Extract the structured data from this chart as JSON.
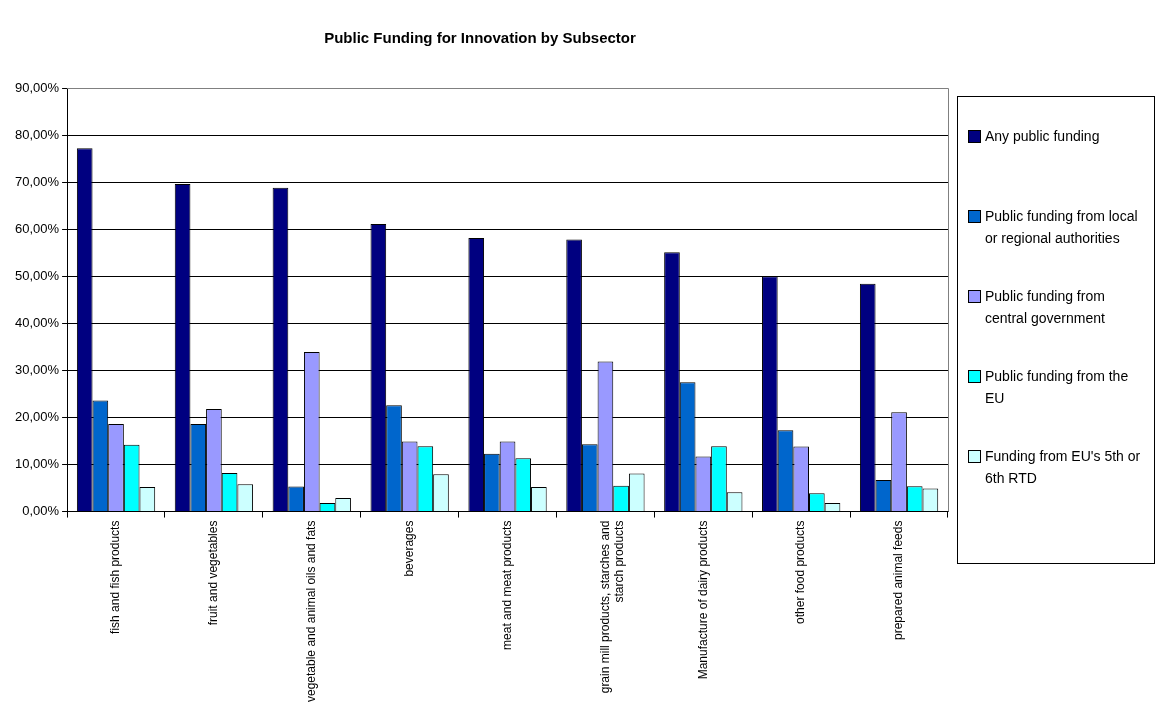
{
  "chart_data": {
    "type": "bar",
    "title": "Public Funding for Innovation by Subsector",
    "categories": [
      "fish and fish products",
      "fruit and vegetables",
      "vegetable and animal oils and fats",
      "beverages",
      "meat and meat products",
      "grain mill products, starches and starch products",
      "Manufacture of dairy products",
      "other food products",
      "prepared animal feeds"
    ],
    "series": [
      {
        "name": "Any public funding",
        "color": "#000080",
        "values": [
          77.2,
          69.6,
          68.8,
          61.1,
          58.1,
          57.8,
          55.1,
          50.0,
          48.4
        ]
      },
      {
        "name": "Public funding from local or regional authorities",
        "color": "#0066cc",
        "values": [
          23.6,
          18.6,
          5.3,
          22.6,
          12.3,
          14.3,
          27.5,
          17.3,
          6.7
        ]
      },
      {
        "name": "Public funding from central government",
        "color": "#9999ff",
        "values": [
          18.6,
          21.8,
          33.9,
          14.9,
          14.9,
          31.9,
          11.7,
          13.8,
          21.1
        ]
      },
      {
        "name": "Public funding from the EU",
        "color": "#00ffff",
        "values": [
          14.2,
          8.2,
          1.8,
          13.9,
          11.3,
          5.5,
          13.9,
          3.9,
          5.4
        ]
      },
      {
        "name": "Funding from EU's 5th or 6th RTD",
        "color": "#ccffff",
        "values": [
          5.2,
          5.8,
          2.9,
          7.9,
          5.2,
          8.1,
          4.1,
          1.8,
          4.9
        ]
      }
    ],
    "ylim": [
      0,
      90
    ],
    "yticks": [
      {
        "value": 0,
        "label": "0,00%"
      },
      {
        "value": 10,
        "label": "10,00%"
      },
      {
        "value": 20,
        "label": "20,00%"
      },
      {
        "value": 30,
        "label": "30,00%"
      },
      {
        "value": 40,
        "label": "40,00%"
      },
      {
        "value": 50,
        "label": "50,00%"
      },
      {
        "value": 60,
        "label": "60,00%"
      },
      {
        "value": 70,
        "label": "70,00%"
      },
      {
        "value": 80,
        "label": "80,00%"
      },
      {
        "value": 90,
        "label": "90,00%"
      }
    ],
    "grid": "y",
    "legend": "right"
  }
}
